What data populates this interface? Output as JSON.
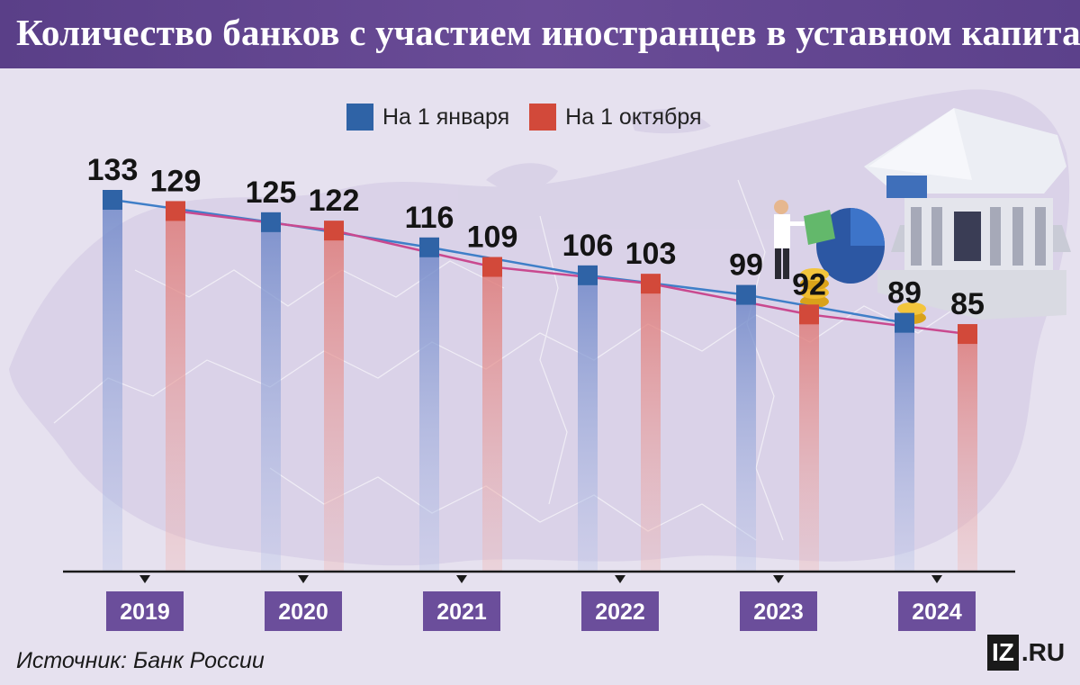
{
  "title": "Количество банков с участием иностранцев в уставном капитале",
  "source": "Источник: Банк России",
  "logo": {
    "box": "IZ",
    "text": ".RU"
  },
  "colors": {
    "january": "#2f63a6",
    "october": "#d2493a",
    "january_line": "#3f7fc8",
    "october_line": "#c9498f",
    "year_box": "#6b4e9b",
    "title_bg": "#5e438e"
  },
  "chart_data": {
    "type": "bar",
    "title": "Количество банков с участием иностранцев в уставном капитале",
    "categories": [
      "2019",
      "2020",
      "2021",
      "2022",
      "2023",
      "2024"
    ],
    "series": [
      {
        "name": "На 1 января",
        "values": [
          133,
          125,
          116,
          106,
          99,
          89
        ]
      },
      {
        "name": "На 1 октября",
        "values": [
          129,
          122,
          109,
          103,
          92,
          85
        ]
      }
    ],
    "xlabel": "",
    "ylabel": "",
    "ylim": [
      0,
      133
    ],
    "grid": false,
    "legend": "top-center"
  }
}
